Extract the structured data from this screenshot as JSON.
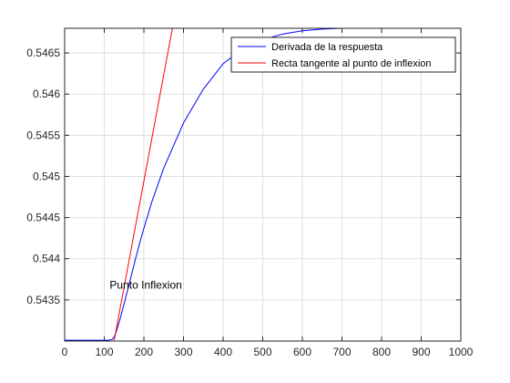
{
  "chart_data": {
    "type": "line",
    "title": "",
    "xlabel": "",
    "ylabel": "",
    "xlim": [
      0,
      1000
    ],
    "ylim": [
      0.543,
      0.5468
    ],
    "grid": true,
    "legend_position": "top-right",
    "x_ticks": [
      0,
      100,
      200,
      300,
      400,
      500,
      600,
      700,
      800,
      900,
      1000
    ],
    "y_ticks": [
      0.5435,
      0.544,
      0.5445,
      0.545,
      0.5455,
      0.546,
      0.5465
    ],
    "x_tick_labels": [
      "0",
      "100",
      "200",
      "300",
      "400",
      "500",
      "600",
      "700",
      "800",
      "900",
      "1000"
    ],
    "y_tick_labels": [
      "0.5435",
      "0.544",
      "0.5445",
      "0.545",
      "0.5455",
      "0.546",
      "0.5465"
    ],
    "series": [
      {
        "name": "Derivada de la respuesta",
        "color": "#0000ff",
        "x": [
          0,
          110,
          120,
          125,
          130,
          140,
          150,
          160,
          170,
          180,
          190,
          200,
          220,
          250,
          300,
          350,
          400,
          450,
          500,
          550,
          600,
          650,
          700,
          800,
          900,
          1000
        ],
        "y": [
          0.54301,
          0.54301,
          0.54302,
          0.54305,
          0.54311,
          0.54327,
          0.54345,
          0.54364,
          0.54383,
          0.54402,
          0.5442,
          0.54437,
          0.54469,
          0.5451,
          0.54565,
          0.54606,
          0.54637,
          0.54655,
          0.54666,
          0.54673,
          0.54677,
          0.54679,
          0.5468,
          0.5468,
          0.5468,
          0.5468
        ]
      },
      {
        "name": "Recta tangente al punto de inflexion",
        "color": "#ff0000",
        "x": [
          125,
          272
        ],
        "y": [
          0.54301,
          0.5468
        ]
      }
    ],
    "annotations": [
      {
        "text": "Punto Inflexion",
        "x": 155,
        "y": 0.54368
      }
    ]
  }
}
